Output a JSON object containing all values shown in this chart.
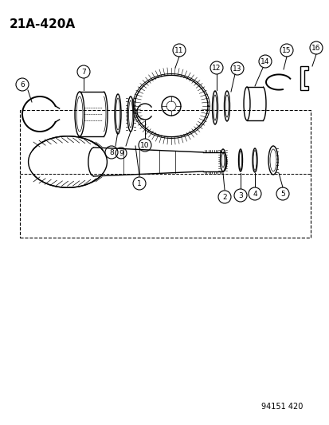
{
  "title": "21A-420A",
  "footer": "94151 420",
  "bg_color": "#ffffff",
  "line_color": "#000000",
  "title_fontsize": 11,
  "footer_fontsize": 7,
  "fig_width": 4.14,
  "fig_height": 5.33,
  "dpi": 100
}
